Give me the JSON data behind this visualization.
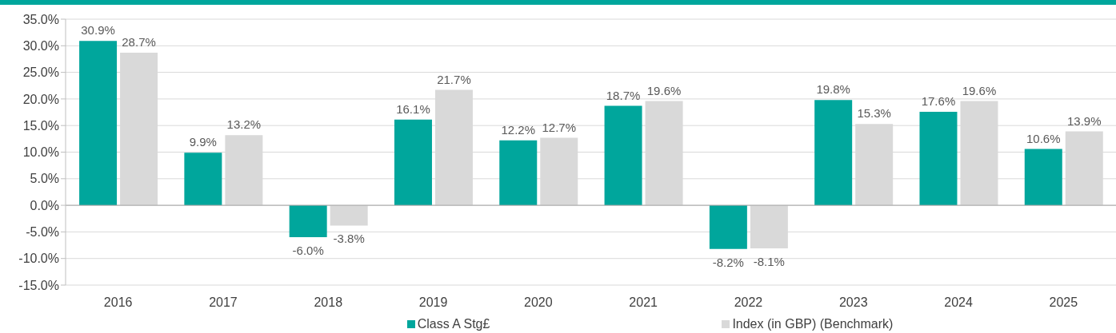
{
  "chart_data": {
    "type": "bar",
    "categories": [
      "2016",
      "2017",
      "2018",
      "2019",
      "2020",
      "2021",
      "2022",
      "2023",
      "2024",
      "2025"
    ],
    "series": [
      {
        "name": "Class A Stg£",
        "color": "#00a69c",
        "values": [
          30.9,
          9.9,
          -6.0,
          16.1,
          12.2,
          18.7,
          -8.2,
          19.8,
          17.6,
          10.6
        ],
        "value_labels": [
          "30.9%",
          "9.9%",
          "-6.0%",
          "16.1%",
          "12.2%",
          "18.7%",
          "-8.2%",
          "19.8%",
          "17.6%",
          "10.6%"
        ]
      },
      {
        "name": "Index (in GBP) (Benchmark)",
        "color": "#d9d9d9",
        "values": [
          28.7,
          13.2,
          -3.8,
          21.7,
          12.7,
          19.6,
          -8.1,
          15.3,
          19.6,
          13.9
        ],
        "value_labels": [
          "28.7%",
          "13.2%",
          "-3.8%",
          "21.7%",
          "12.7%",
          "19.6%",
          "-8.1%",
          "15.3%",
          "19.6%",
          "13.9%"
        ]
      }
    ],
    "ylim": [
      -15,
      35
    ],
    "yticks": [
      {
        "value": -15,
        "label": "-15.0%"
      },
      {
        "value": -10,
        "label": "-10.0%"
      },
      {
        "value": -5,
        "label": "-5.0%"
      },
      {
        "value": 0,
        "label": "0.0%"
      },
      {
        "value": 5,
        "label": "5.0%"
      },
      {
        "value": 10,
        "label": "10.0%"
      },
      {
        "value": 15,
        "label": "15.0%"
      },
      {
        "value": 20,
        "label": "20.0%"
      },
      {
        "value": 25,
        "label": "25.0%"
      },
      {
        "value": 30,
        "label": "30.0%"
      },
      {
        "value": 35,
        "label": "35.0%"
      }
    ],
    "grid": "y",
    "legend": "bottom"
  }
}
